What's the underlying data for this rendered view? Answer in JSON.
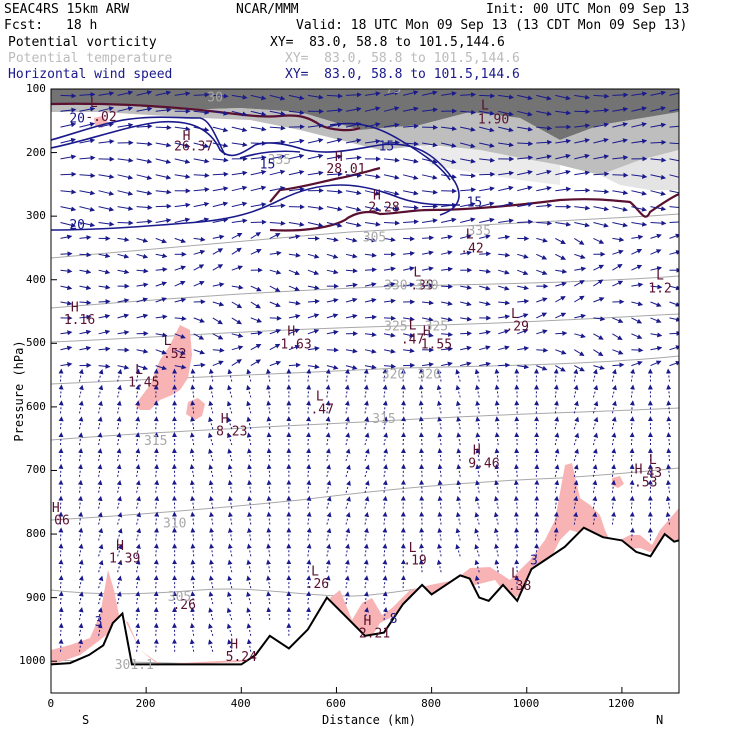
{
  "header": {
    "model": "SEAC4RS 15km ARW",
    "org": "NCAR/MMM",
    "init": "Init: 00 UTC Mon 09 Sep 13",
    "fcst_label": "Fcst:",
    "fcst_value": "18 h",
    "valid": "Valid: 18 UTC Mon 09 Sep 13 (13 CDT Mon 09 Sep 13)",
    "fields": [
      {
        "name": "Potential vorticity",
        "xy": "XY=  83.0, 58.8 to 101.5,144.6",
        "color": "#000000"
      },
      {
        "name": "Potential temperature",
        "xy": "XY=  83.0, 58.8 to 101.5,144.6",
        "color": "#bbbbbb"
      },
      {
        "name": "Horizontal wind speed",
        "xy": "XY=  83.0, 58.8 to 101.5,144.6",
        "color": "#1a1a8c"
      }
    ]
  },
  "chart_data": {
    "type": "cross-section",
    "xlabel": "Distance (km)",
    "ylabel": "Pressure (hPa)",
    "xlim": [
      0,
      1320
    ],
    "ylim": [
      1050,
      100
    ],
    "x_ticks": [
      "0",
      "200",
      "400",
      "600",
      "800",
      "1000",
      "1200"
    ],
    "y_ticks": [
      "100",
      "200",
      "300",
      "400",
      "500",
      "600",
      "700",
      "800",
      "900",
      "1000"
    ],
    "endpoint_left": "S",
    "endpoint_right": "N",
    "terrain_surface": {
      "x": [
        0,
        40,
        80,
        110,
        130,
        150,
        170,
        200,
        240,
        300,
        360,
        400,
        430,
        460,
        500,
        540,
        580,
        620,
        660,
        700,
        740,
        780,
        800,
        830,
        860,
        880,
        900,
        920,
        950,
        980,
        1010,
        1040,
        1080,
        1120,
        1160,
        1200,
        1230,
        1260,
        1290,
        1310,
        1320
      ],
      "p": [
        1005,
        1003,
        990,
        975,
        940,
        925,
        1005,
        1005,
        1005,
        1005,
        1005,
        1005,
        990,
        960,
        980,
        950,
        900,
        930,
        960,
        955,
        910,
        880,
        895,
        880,
        865,
        870,
        900,
        905,
        880,
        905,
        855,
        840,
        820,
        790,
        805,
        810,
        828,
        835,
        800,
        812,
        810
      ]
    },
    "pv_labels": [
      {
        "text": "L",
        "x": 90,
        "p": 128
      },
      {
        "text": "-.02",
        "x": 105,
        "p": 150
      },
      {
        "text": "H",
        "x": 285,
        "p": 180
      },
      {
        "text": "26.37",
        "x": 300,
        "p": 197
      },
      {
        "text": "H",
        "x": 605,
        "p": 213
      },
      {
        "text": "28.01",
        "x": 620,
        "p": 232
      },
      {
        "text": "L",
        "x": 912,
        "p": 132
      },
      {
        "text": "1.90",
        "x": 930,
        "p": 154
      },
      {
        "text": "H",
        "x": 685,
        "p": 274
      },
      {
        "text": "2.28",
        "x": 700,
        "p": 293
      },
      {
        "text": "L",
        "x": 880,
        "p": 335
      },
      {
        "text": ".42",
        "x": 885,
        "p": 357
      },
      {
        "text": "L",
        "x": 770,
        "p": 395
      },
      {
        "text": ".39",
        "x": 780,
        "p": 415
      },
      {
        "text": "L",
        "x": 1280,
        "p": 400
      },
      {
        "text": "1.2",
        "x": 1280,
        "p": 420
      },
      {
        "text": "H",
        "x": 50,
        "p": 450
      },
      {
        "text": "1.16",
        "x": 60,
        "p": 470
      },
      {
        "text": "L",
        "x": 975,
        "p": 460
      },
      {
        "text": ".29",
        "x": 980,
        "p": 480
      },
      {
        "text": "H",
        "x": 505,
        "p": 488
      },
      {
        "text": "1.63",
        "x": 515,
        "p": 508
      },
      {
        "text": "L",
        "x": 760,
        "p": 478
      },
      {
        "text": ".47",
        "x": 760,
        "p": 500
      },
      {
        "text": "H",
        "x": 790,
        "p": 488
      },
      {
        "text": "1.55",
        "x": 810,
        "p": 508
      },
      {
        "text": "L",
        "x": 245,
        "p": 503
      },
      {
        "text": ".52",
        "x": 260,
        "p": 523
      },
      {
        "text": "L",
        "x": 185,
        "p": 548
      },
      {
        "text": "1.45",
        "x": 195,
        "p": 568
      },
      {
        "text": "L",
        "x": 565,
        "p": 590
      },
      {
        "text": ".47",
        "x": 570,
        "p": 610
      },
      {
        "text": "H",
        "x": 365,
        "p": 625
      },
      {
        "text": "8.23",
        "x": 380,
        "p": 645
      },
      {
        "text": "H",
        "x": 895,
        "p": 675
      },
      {
        "text": "9.46",
        "x": 910,
        "p": 695
      },
      {
        "text": "L",
        "x": 1265,
        "p": 690
      },
      {
        "text": "H",
        "x": 1235,
        "p": 705
      },
      {
        "text": "43",
        "x": 1268,
        "p": 710
      },
      {
        "text": ".53",
        "x": 1250,
        "p": 725
      },
      {
        "text": "H",
        "x": 10,
        "p": 765
      },
      {
        "text": ".06",
        "x": 15,
        "p": 785
      },
      {
        "text": "H",
        "x": 145,
        "p": 825
      },
      {
        "text": "1.39",
        "x": 155,
        "p": 845
      },
      {
        "text": "L",
        "x": 760,
        "p": 828
      },
      {
        "text": ".19",
        "x": 765,
        "p": 848
      },
      {
        "text": "L",
        "x": 555,
        "p": 865
      },
      {
        "text": ".26",
        "x": 560,
        "p": 885
      },
      {
        "text": "L",
        "x": 975,
        "p": 868
      },
      {
        "text": ".38",
        "x": 985,
        "p": 888
      },
      {
        "text": ".26",
        "x": 280,
        "p": 918
      },
      {
        "text": "H",
        "x": 665,
        "p": 943
      },
      {
        "text": "2.21",
        "x": 680,
        "p": 963
      },
      {
        "text": "H",
        "x": 385,
        "p": 980
      },
      {
        "text": "5.24",
        "x": 400,
        "p": 1000
      }
    ],
    "theta_labels": [
      {
        "text": "335",
        "x": 480,
        "p": 218
      },
      {
        "text": "305",
        "x": 680,
        "p": 340
      },
      {
        "text": "335",
        "x": 900,
        "p": 330
      },
      {
        "text": "330",
        "x": 725,
        "p": 415
      },
      {
        "text": "330",
        "x": 790,
        "p": 415
      },
      {
        "text": "325",
        "x": 725,
        "p": 480
      },
      {
        "text": "325",
        "x": 810,
        "p": 480
      },
      {
        "text": "320",
        "x": 720,
        "p": 555
      },
      {
        "text": "320",
        "x": 795,
        "p": 555
      },
      {
        "text": "315",
        "x": 700,
        "p": 625
      },
      {
        "text": "315",
        "x": 220,
        "p": 660
      },
      {
        "text": "310",
        "x": 260,
        "p": 790
      },
      {
        "text": "305",
        "x": 270,
        "p": 905
      },
      {
        "text": "301.1",
        "x": 175,
        "p": 1012
      },
      {
        "text": "30",
        "x": 345,
        "p": 120
      },
      {
        "text": "55",
        "x": 900,
        "p": 100
      },
      {
        "text": "75",
        "x": 720,
        "p": 106
      }
    ],
    "ws_labels": [
      {
        "text": "20",
        "x": 55,
        "p": 153
      },
      {
        "text": "20",
        "x": 55,
        "p": 320
      },
      {
        "text": "15",
        "x": 705,
        "p": 197
      },
      {
        "text": "15",
        "x": 890,
        "p": 285
      },
      {
        "text": "3",
        "x": 1015,
        "p": 848
      },
      {
        "text": "8",
        "x": 720,
        "p": 940
      },
      {
        "text": "3",
        "x": 100,
        "p": 945
      },
      {
        "text": "15",
        "x": 455,
        "p": 225
      }
    ]
  }
}
